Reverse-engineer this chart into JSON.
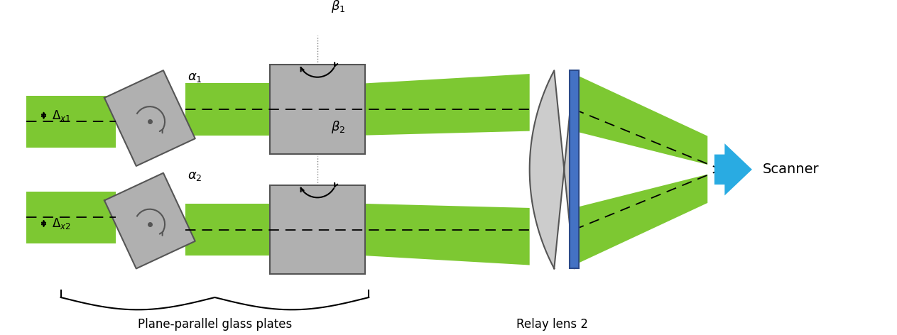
{
  "fig_width": 12.63,
  "fig_height": 4.72,
  "dpi": 100,
  "bg_color": "#ffffff",
  "gray_fill": "#b0b0b0",
  "gray_edge": "#555555",
  "green": "#7dc832",
  "blue_lens": "#4472c4",
  "blue_lens_edge": "#2c4a8a",
  "blue_arrow": "#29abe2",
  "label_fontsize": 12,
  "ann_fontsize": 13,
  "scanner_label": "Scanner",
  "relay_label": "Relay lens 2",
  "glass_label": "Plane-parallel glass plates"
}
